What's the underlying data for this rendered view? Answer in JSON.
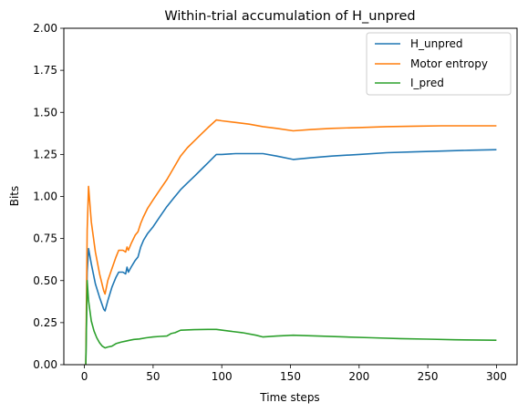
{
  "chart_data": {
    "type": "line",
    "title": "Within-trial accumulation of H_unpred",
    "xlabel": "Time steps",
    "ylabel": "Bits",
    "xlim": [
      -15,
      315
    ],
    "ylim": [
      0,
      2
    ],
    "xticks": [
      0,
      50,
      100,
      150,
      200,
      250,
      300
    ],
    "xtick_labels": [
      "0",
      "50",
      "100",
      "150",
      "200",
      "250",
      "300"
    ],
    "yticks": [
      0,
      0.25,
      0.5,
      0.75,
      1.0,
      1.25,
      1.5,
      1.75,
      2.0
    ],
    "ytick_labels": [
      "0.00",
      "0.25",
      "0.50",
      "0.75",
      "1.00",
      "1.25",
      "1.50",
      "1.75",
      "2.00"
    ],
    "grid": false,
    "legend_position": "top-right",
    "series": [
      {
        "name": "H_unpred",
        "color": "#1f77b4",
        "points": [
          [
            1,
            0
          ],
          [
            2,
            0.55
          ],
          [
            3,
            0.69
          ],
          [
            5,
            0.6
          ],
          [
            8,
            0.48
          ],
          [
            11,
            0.4
          ],
          [
            14,
            0.33
          ],
          [
            15,
            0.32
          ],
          [
            17,
            0.38
          ],
          [
            20,
            0.46
          ],
          [
            23,
            0.52
          ],
          [
            25,
            0.55
          ],
          [
            28,
            0.55
          ],
          [
            30,
            0.54
          ],
          [
            31,
            0.58
          ],
          [
            32,
            0.55
          ],
          [
            34,
            0.58
          ],
          [
            37,
            0.62
          ],
          [
            39,
            0.64
          ],
          [
            41,
            0.7
          ],
          [
            43,
            0.74
          ],
          [
            46,
            0.78
          ],
          [
            50,
            0.82
          ],
          [
            55,
            0.88
          ],
          [
            60,
            0.94
          ],
          [
            65,
            0.99
          ],
          [
            70,
            1.04
          ],
          [
            75,
            1.08
          ],
          [
            80,
            1.12
          ],
          [
            85,
            1.16
          ],
          [
            90,
            1.2
          ],
          [
            96,
            1.25
          ],
          [
            100,
            1.25
          ],
          [
            110,
            1.255
          ],
          [
            120,
            1.255
          ],
          [
            130,
            1.255
          ],
          [
            140,
            1.24
          ],
          [
            152,
            1.22
          ],
          [
            165,
            1.23
          ],
          [
            180,
            1.24
          ],
          [
            200,
            1.25
          ],
          [
            220,
            1.26
          ],
          [
            240,
            1.265
          ],
          [
            260,
            1.27
          ],
          [
            280,
            1.275
          ],
          [
            300,
            1.278
          ]
        ]
      },
      {
        "name": "Motor entropy",
        "color": "#ff7f0e",
        "points": [
          [
            1,
            0
          ],
          [
            2,
            0.8
          ],
          [
            3,
            1.06
          ],
          [
            5,
            0.85
          ],
          [
            8,
            0.67
          ],
          [
            11,
            0.54
          ],
          [
            14,
            0.44
          ],
          [
            15,
            0.42
          ],
          [
            17,
            0.5
          ],
          [
            20,
            0.57
          ],
          [
            23,
            0.64
          ],
          [
            25,
            0.68
          ],
          [
            28,
            0.68
          ],
          [
            30,
            0.67
          ],
          [
            31,
            0.7
          ],
          [
            32,
            0.68
          ],
          [
            34,
            0.72
          ],
          [
            37,
            0.77
          ],
          [
            39,
            0.79
          ],
          [
            41,
            0.84
          ],
          [
            43,
            0.88
          ],
          [
            46,
            0.93
          ],
          [
            50,
            0.98
          ],
          [
            55,
            1.04
          ],
          [
            60,
            1.1
          ],
          [
            65,
            1.17
          ],
          [
            70,
            1.24
          ],
          [
            75,
            1.29
          ],
          [
            80,
            1.33
          ],
          [
            85,
            1.37
          ],
          [
            90,
            1.41
          ],
          [
            96,
            1.455
          ],
          [
            100,
            1.45
          ],
          [
            110,
            1.44
          ],
          [
            120,
            1.43
          ],
          [
            130,
            1.415
          ],
          [
            140,
            1.405
          ],
          [
            152,
            1.39
          ],
          [
            165,
            1.398
          ],
          [
            180,
            1.405
          ],
          [
            200,
            1.41
          ],
          [
            220,
            1.415
          ],
          [
            240,
            1.418
          ],
          [
            260,
            1.42
          ],
          [
            280,
            1.42
          ],
          [
            300,
            1.42
          ]
        ]
      },
      {
        "name": "I_pred",
        "color": "#2ca02c",
        "points": [
          [
            1,
            0
          ],
          [
            2,
            0.5
          ],
          [
            3,
            0.38
          ],
          [
            5,
            0.26
          ],
          [
            7,
            0.2
          ],
          [
            9,
            0.16
          ],
          [
            11,
            0.13
          ],
          [
            13,
            0.11
          ],
          [
            15,
            0.1
          ],
          [
            17,
            0.105
          ],
          [
            20,
            0.11
          ],
          [
            23,
            0.125
          ],
          [
            25,
            0.13
          ],
          [
            27,
            0.135
          ],
          [
            30,
            0.14
          ],
          [
            33,
            0.145
          ],
          [
            36,
            0.15
          ],
          [
            40,
            0.153
          ],
          [
            45,
            0.16
          ],
          [
            50,
            0.165
          ],
          [
            55,
            0.168
          ],
          [
            60,
            0.17
          ],
          [
            63,
            0.185
          ],
          [
            66,
            0.19
          ],
          [
            70,
            0.205
          ],
          [
            80,
            0.208
          ],
          [
            90,
            0.21
          ],
          [
            96,
            0.21
          ],
          [
            105,
            0.2
          ],
          [
            115,
            0.19
          ],
          [
            125,
            0.175
          ],
          [
            130,
            0.165
          ],
          [
            140,
            0.17
          ],
          [
            152,
            0.175
          ],
          [
            170,
            0.17
          ],
          [
            190,
            0.165
          ],
          [
            210,
            0.16
          ],
          [
            230,
            0.155
          ],
          [
            250,
            0.152
          ],
          [
            270,
            0.148
          ],
          [
            300,
            0.145
          ]
        ]
      }
    ]
  }
}
